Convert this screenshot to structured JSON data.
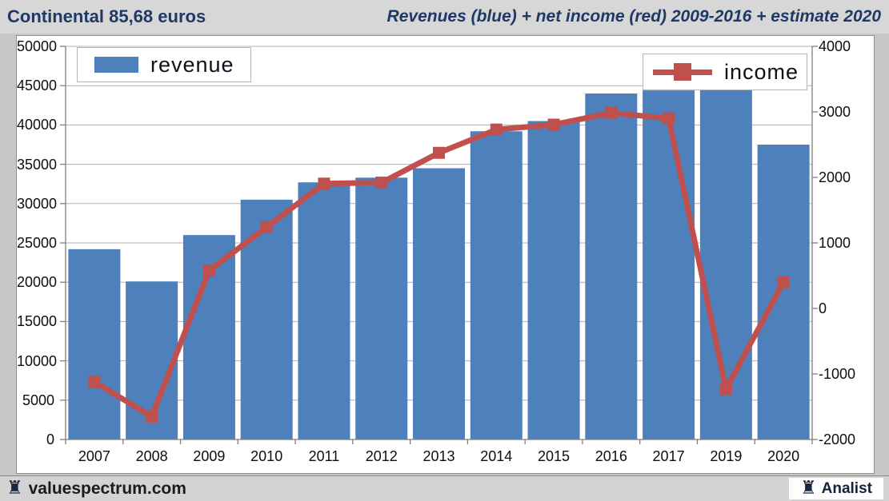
{
  "header": {
    "title_left": "Continental 85,68 euros",
    "title_right": "Revenues (blue) + net income (red) 2009-2016 + estimate 2020"
  },
  "footer": {
    "site": "valuespectrum.com",
    "brand": "Analist",
    "rook_icon": "♜"
  },
  "colors": {
    "revenue_bar": "#4E80BC",
    "income_line": "#C0504D",
    "header_text": "#1F3864",
    "grid": "#b0b0b0",
    "axis": "#7f7f7f",
    "plot_background": "#ffffff",
    "frame_background": "#c7c7c7"
  },
  "chart_data": {
    "type": "bar",
    "subtype": "bar+line combo, dual axis",
    "title": "Revenues (blue) + net income (red) 2009-2016 + estimate 2020",
    "xlabel": "",
    "ylabel_left": "",
    "ylabel_right": "",
    "categories": [
      "2007",
      "2008",
      "2009",
      "2010",
      "2011",
      "2012",
      "2013",
      "2014",
      "2015",
      "2016",
      "2017",
      "2019",
      "2020"
    ],
    "series": [
      {
        "name": "revenue",
        "type": "bar",
        "axis": "left",
        "color": "#4E80BC",
        "values": [
          24200,
          20100,
          26000,
          30500,
          32700,
          33300,
          34500,
          39200,
          40500,
          44000,
          44400,
          44500,
          37500
        ]
      },
      {
        "name": "income",
        "type": "line",
        "axis": "right",
        "color": "#C0504D",
        "marker": "square",
        "values": [
          -1120,
          -1650,
          580,
          1240,
          1905,
          1920,
          2375,
          2730,
          2805,
          2985,
          2900,
          -1230,
          400
        ]
      }
    ],
    "left_axis": {
      "min": 0,
      "max": 50000,
      "step": 5000,
      "tick_labels": [
        "0",
        "5000",
        "10000",
        "15000",
        "20000",
        "25000",
        "30000",
        "35000",
        "40000",
        "45000",
        "50000"
      ]
    },
    "right_axis": {
      "min": -2000,
      "max": 4000,
      "step": 1000,
      "tick_labels": [
        "-2000",
        "-1000",
        "0",
        "1000",
        "2000",
        "3000",
        "4000"
      ]
    },
    "grid": "horizontal gridlines at left-axis steps",
    "legend_position": "two boxes inside plot: revenue top-left, income top-right",
    "note": "x axis skips year 2018"
  }
}
